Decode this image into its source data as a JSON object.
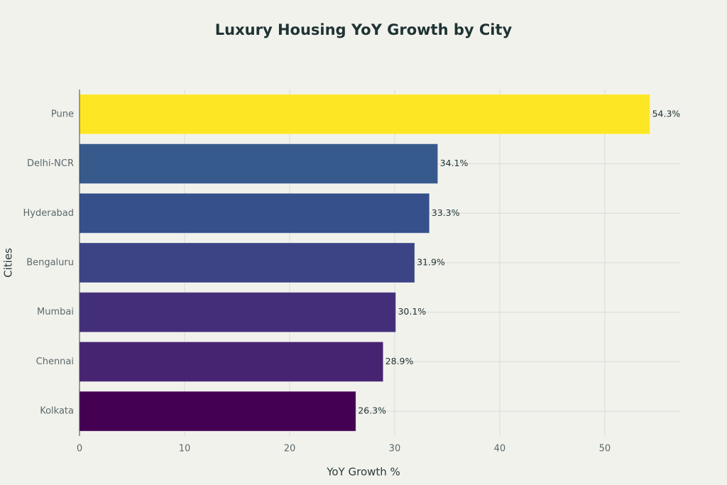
{
  "chart_data": {
    "type": "barh",
    "title": "Luxury Housing YoY Growth by City",
    "xlabel": "YoY Growth %",
    "ylabel": "Cities",
    "categories": [
      "Pune",
      "Delhi-NCR",
      "Hyderabad",
      "Bengaluru",
      "Mumbai",
      "Chennai",
      "Kolkata"
    ],
    "values": [
      54.3,
      34.1,
      33.3,
      31.9,
      30.1,
      28.9,
      26.3
    ],
    "value_labels": [
      "54.3%",
      "34.1%",
      "33.3%",
      "31.9%",
      "30.1%",
      "28.9%",
      "26.3%"
    ],
    "colors": [
      "#fde725",
      "#365a8c",
      "#35508a",
      "#3c4485",
      "#432f79",
      "#472472",
      "#440154"
    ],
    "xlim": [
      0,
      57.1
    ],
    "xticks": [
      0,
      10,
      20,
      30,
      40,
      50
    ],
    "grid": true
  }
}
